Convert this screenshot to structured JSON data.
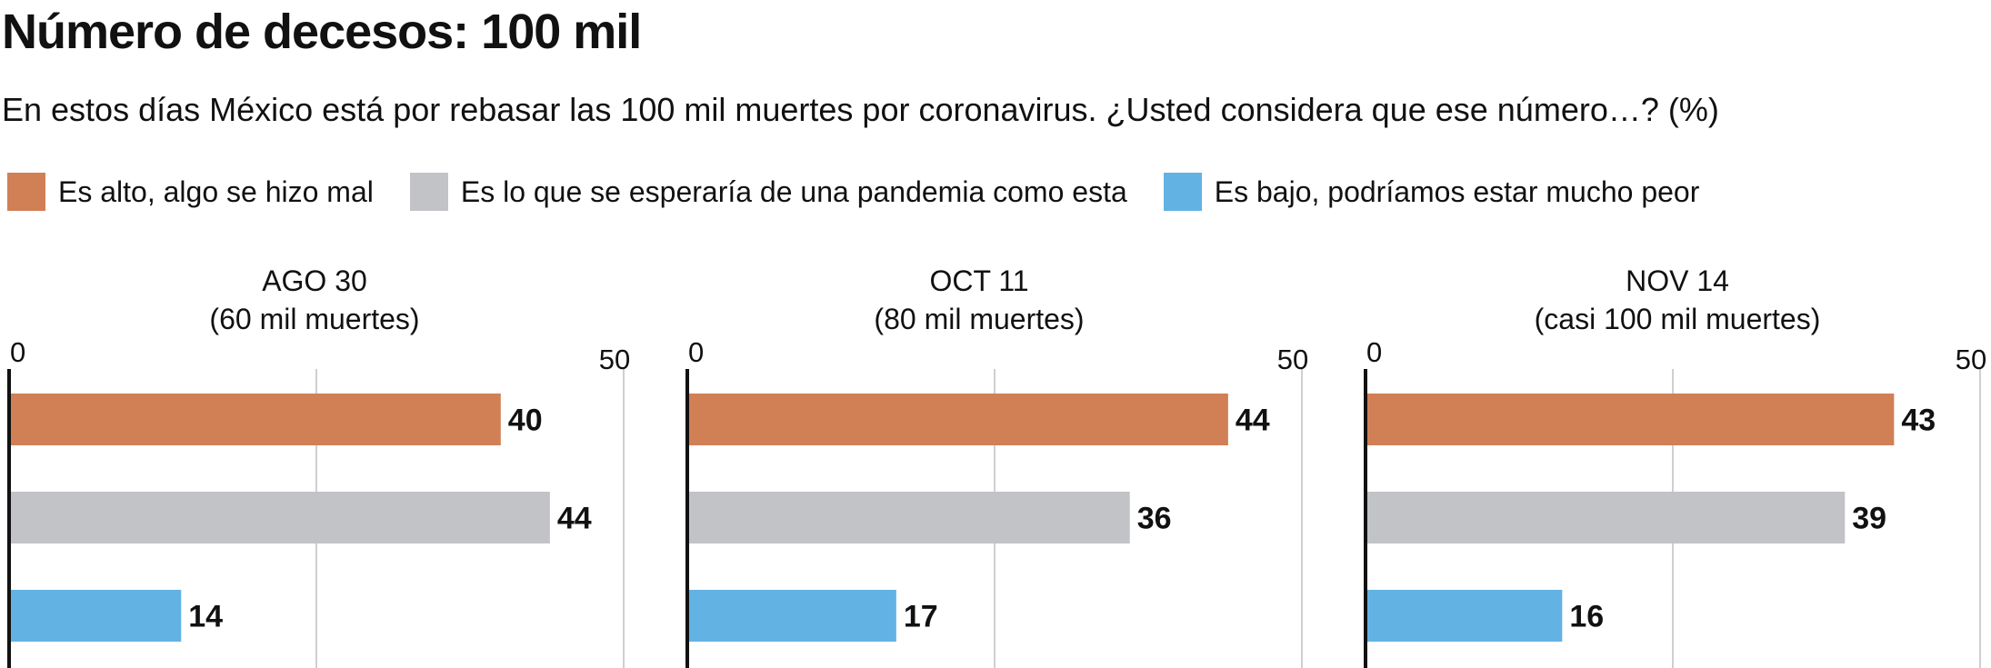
{
  "title": "Número de decesos: 100 mil",
  "subtitle": "En estos días México está por rebasar las 100 mil muertes por  coronavirus. ¿Usted considera que ese número…?  (%)",
  "legend": [
    {
      "label": "Es alto, algo se hizo mal",
      "color": "#d17f55"
    },
    {
      "label": "Es lo que se esperaría de una pandemia como esta",
      "color": "#c2c3c7"
    },
    {
      "label": "Es bajo, podríamos estar mucho peor",
      "color": "#62b2e4"
    }
  ],
  "chart_data": [
    {
      "type": "bar",
      "title": "AGO 30",
      "subtitle": "(60 mil muertes)",
      "categories": [
        "Es alto, algo se hizo mal",
        "Es lo que se esperaría de una pandemia como esta",
        "Es bajo, podríamos estar mucho peor"
      ],
      "values": [
        40,
        44,
        14
      ],
      "value_labels": [
        "40",
        "44",
        "14"
      ],
      "xlim": [
        0,
        50
      ],
      "ticks": [
        "0",
        "50"
      ],
      "grid": true
    },
    {
      "type": "bar",
      "title": "OCT 11",
      "subtitle": "(80 mil muertes)",
      "categories": [
        "Es alto, algo se hizo mal",
        "Es lo que se esperaría de una pandemia como esta",
        "Es bajo, podríamos estar mucho peor"
      ],
      "values": [
        44,
        36,
        17
      ],
      "value_labels": [
        "44",
        "36",
        "17"
      ],
      "xlim": [
        0,
        50
      ],
      "ticks": [
        "0",
        "50"
      ],
      "grid": true
    },
    {
      "type": "bar",
      "title": "NOV 14",
      "subtitle": "(casi 100 mil muertes)",
      "categories": [
        "Es alto, algo se hizo mal",
        "Es lo que se esperaría de una pandemia como esta",
        "Es bajo, podríamos estar mucho peor"
      ],
      "values": [
        43,
        39,
        16
      ],
      "value_labels": [
        "43",
        "39",
        "16"
      ],
      "xlim": [
        0,
        50
      ],
      "ticks": [
        "0",
        "50"
      ],
      "grid": true
    }
  ]
}
